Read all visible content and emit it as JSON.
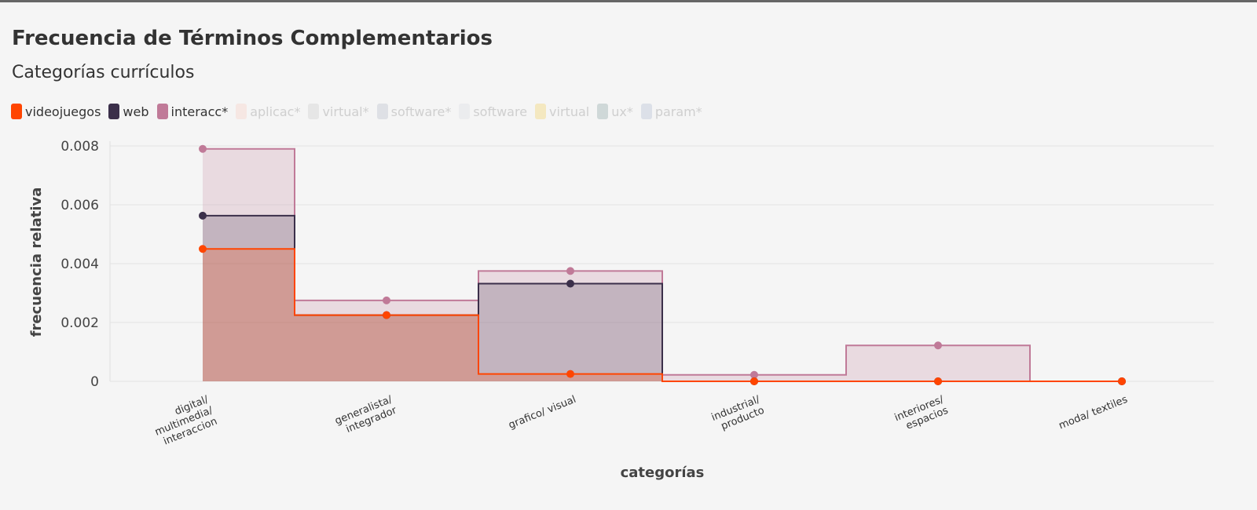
{
  "title": "Frecuencia de Términos Complementarios",
  "subtitle": "Categorías currículos",
  "legend": [
    {
      "label": "videojuegos",
      "color": "#ff4500",
      "active": true
    },
    {
      "label": "web",
      "color": "#3b2f4a",
      "active": true
    },
    {
      "label": "interacc*",
      "color": "#c07a98",
      "active": true
    },
    {
      "label": "aplicac*",
      "color": "#f8d9d2",
      "active": false
    },
    {
      "label": "virtual*",
      "color": "#d8d8d8",
      "active": false
    },
    {
      "label": "software*",
      "color": "#c8cbd6",
      "active": false
    },
    {
      "label": "software",
      "color": "#e1e4e8",
      "active": false
    },
    {
      "label": "virtual",
      "color": "#f4dc8c",
      "active": false
    },
    {
      "label": "ux*",
      "color": "#a9bbbb",
      "active": false
    },
    {
      "label": "param*",
      "color": "#c3cbdc",
      "active": false
    }
  ],
  "chart_data": {
    "type": "area",
    "step": true,
    "xlabel": "categorías",
    "ylabel": "frecuencia relativa",
    "ylim": [
      0,
      0.008
    ],
    "yticks": [
      0,
      0.002,
      0.004,
      0.006,
      0.008
    ],
    "ytick_labels": [
      "0",
      "0.002",
      "0.004",
      "0.006",
      "0.008"
    ],
    "grid": true,
    "legend_position": "top-left",
    "categories": [
      [
        "digital/",
        "multimedia/",
        "interaccion"
      ],
      [
        "generalista/",
        "integrador"
      ],
      [
        "grafico/ visual"
      ],
      [
        "industrial/",
        "producto"
      ],
      [
        "interiores/",
        "espacios"
      ],
      [
        "moda/ textiles"
      ]
    ],
    "series": [
      {
        "name": "interacc*",
        "color": "#c07a98",
        "values": [
          0.0079,
          0.00275,
          0.00375,
          0.00022,
          0.00122,
          0.0
        ]
      },
      {
        "name": "web",
        "color": "#3b2f4a",
        "values": [
          0.00563,
          0.00225,
          0.00332,
          0.0,
          0.0,
          0.0
        ]
      },
      {
        "name": "videojuegos",
        "color": "#ff4500",
        "values": [
          0.0045,
          0.00225,
          0.00025,
          0.0,
          0.0,
          0.0
        ]
      }
    ]
  }
}
